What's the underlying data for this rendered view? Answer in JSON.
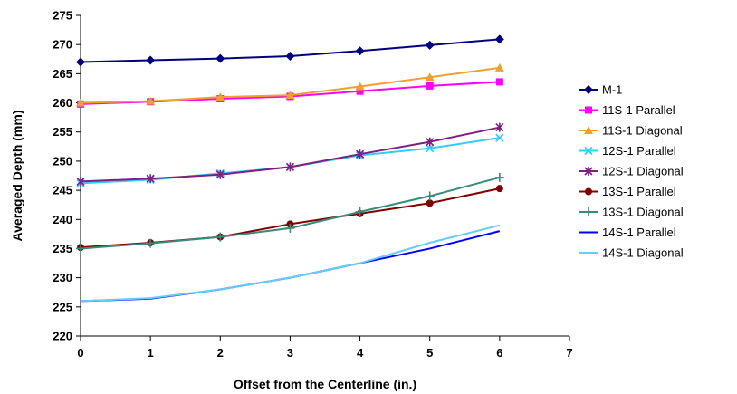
{
  "chart_data": {
    "type": "line",
    "title": "",
    "xlabel": "Offset from the Centerline (in.)",
    "ylabel": "Averaged Depth (mm)",
    "xlim": [
      0,
      7
    ],
    "ylim": [
      220,
      275
    ],
    "x_ticks": [
      0,
      1,
      2,
      3,
      4,
      5,
      6,
      7
    ],
    "y_ticks": [
      220,
      225,
      230,
      235,
      240,
      245,
      250,
      255,
      260,
      265,
      270,
      275
    ],
    "grid": false,
    "legend_position": "right",
    "x": [
      0,
      1,
      2,
      3,
      4,
      5,
      6
    ],
    "series": [
      {
        "name": "M-1",
        "values": [
          267.0,
          267.3,
          267.6,
          268.0,
          268.9,
          269.9,
          270.9
        ],
        "color": "#00007f",
        "marker": "diamond"
      },
      {
        "name": "11S-1 Parallel",
        "values": [
          259.8,
          260.2,
          260.7,
          261.1,
          262.0,
          262.9,
          263.6
        ],
        "color": "#ff00ff",
        "marker": "square"
      },
      {
        "name": "11S-1 Diagonal",
        "values": [
          260.0,
          260.3,
          261.0,
          261.3,
          262.8,
          264.4,
          266.0
        ],
        "color": "#f0a030",
        "marker": "triangle"
      },
      {
        "name": "12S-1 Parallel",
        "values": [
          246.2,
          246.8,
          247.9,
          249.0,
          251.0,
          252.2,
          254.0
        ],
        "color": "#33ccff",
        "marker": "x"
      },
      {
        "name": "12S-1 Diagonal",
        "values": [
          246.5,
          247.0,
          247.7,
          249.0,
          251.2,
          253.3,
          255.8
        ],
        "color": "#7f1f7f",
        "marker": "star"
      },
      {
        "name": "13S-1 Parallel",
        "values": [
          235.2,
          236.0,
          237.0,
          239.2,
          241.0,
          242.8,
          245.3
        ],
        "color": "#800000",
        "marker": "circle"
      },
      {
        "name": "13S-1 Diagonal",
        "values": [
          235.0,
          235.9,
          237.0,
          238.5,
          241.3,
          244.0,
          247.2
        ],
        "color": "#3a8a7a",
        "marker": "plus"
      },
      {
        "name": "14S-1 Parallel",
        "values": [
          226.0,
          226.4,
          228.0,
          230.0,
          232.5,
          235.0,
          238.0
        ],
        "color": "#0000ff",
        "marker": "none"
      },
      {
        "name": "14S-1 Diagonal",
        "values": [
          226.0,
          226.5,
          228.0,
          230.0,
          232.5,
          236.0,
          239.0
        ],
        "color": "#66ccff",
        "marker": "none"
      }
    ]
  }
}
